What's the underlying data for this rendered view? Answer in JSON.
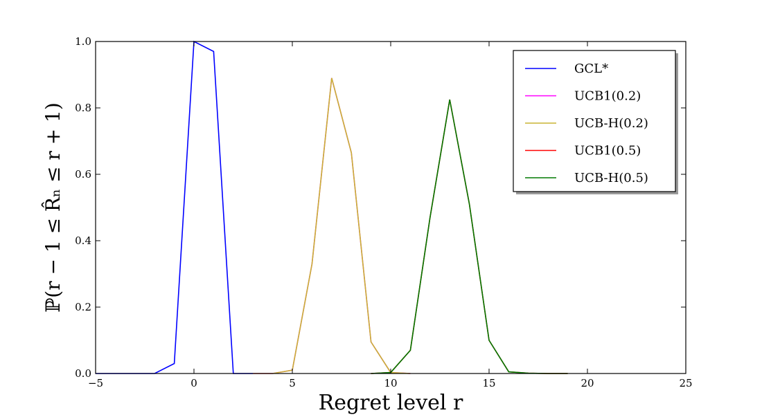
{
  "chart_data": {
    "type": "line",
    "xlabel": "Regret level r",
    "ylabel": "ℙ(r − 1 ≤ R̂ₙ ≤ r + 1)",
    "xlim": [
      -5,
      25
    ],
    "ylim": [
      0,
      1
    ],
    "xticks": [
      -5,
      0,
      5,
      10,
      15,
      20,
      25
    ],
    "xtick_labels": [
      "−5",
      "0",
      "5",
      "10",
      "15",
      "20",
      "25"
    ],
    "yticks": [
      0,
      0.2,
      0.4,
      0.6,
      0.8,
      1.0
    ],
    "ytick_labels": [
      "0.0",
      "0.2",
      "0.4",
      "0.6",
      "0.8",
      "1.0"
    ],
    "grid": false,
    "legend_position": "top-right",
    "series": [
      {
        "name": "GCL*",
        "color": "#0000ff",
        "x": [
          -5,
          -4,
          -3,
          -2,
          -1,
          0,
          1,
          2,
          3
        ],
        "y": [
          0,
          0,
          0,
          0,
          0.03,
          1.0,
          0.97,
          0,
          0
        ]
      },
      {
        "name": "UCB1(0.2)",
        "color": "#ff00ff",
        "x": [
          3,
          4,
          5,
          6,
          7,
          8,
          9,
          10,
          11
        ],
        "y": [
          0,
          0,
          0.01,
          0.33,
          0.89,
          0.665,
          0.095,
          0.003,
          0
        ]
      },
      {
        "name": "UCB-H(0.2)",
        "color": "#c8b432",
        "x": [
          3,
          4,
          5,
          6,
          7,
          8,
          9,
          10,
          11
        ],
        "y": [
          0,
          0,
          0.01,
          0.33,
          0.89,
          0.665,
          0.095,
          0.003,
          0
        ]
      },
      {
        "name": "UCB1(0.5)",
        "color": "#ff0000",
        "x": [
          9,
          10,
          11,
          12,
          13,
          14,
          15,
          16,
          17,
          18,
          19
        ],
        "y": [
          0,
          0.003,
          0.07,
          0.47,
          0.825,
          0.51,
          0.1,
          0.005,
          0.001,
          0,
          0
        ]
      },
      {
        "name": "UCB-H(0.5)",
        "color": "#007800",
        "x": [
          9,
          10,
          11,
          12,
          13,
          14,
          15,
          16,
          17,
          18,
          19
        ],
        "y": [
          0,
          0.003,
          0.07,
          0.47,
          0.825,
          0.51,
          0.1,
          0.005,
          0.001,
          0,
          0
        ]
      }
    ]
  }
}
